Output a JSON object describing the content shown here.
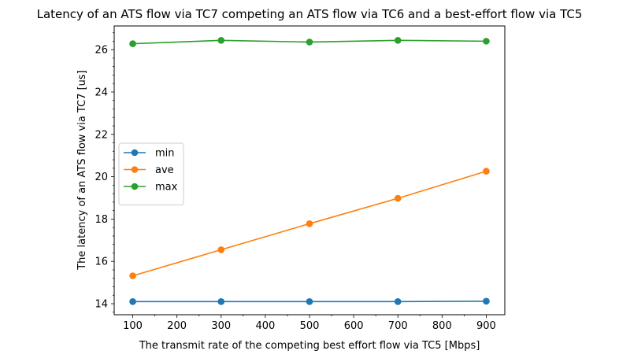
{
  "chart_data": {
    "type": "line",
    "title": "Latency of an ATS flow via TC7 competing an ATS flow via TC6 and a best-effort flow via TC5",
    "xlabel": "The transmit rate of the competing best effort flow via TC5 [Mbps]",
    "ylabel": "The latency of an ATS flow via TC7 [us]",
    "x": [
      100,
      300,
      500,
      700,
      900
    ],
    "xlim": [
      58,
      942
    ],
    "ylim": [
      13.48,
      27.12
    ],
    "xticks": [
      100,
      200,
      300,
      400,
      500,
      600,
      700,
      800,
      900
    ],
    "yticks": [
      14,
      16,
      18,
      20,
      22,
      24,
      26
    ],
    "xtick_labels": [
      "100",
      "200",
      "300",
      "400",
      "500",
      "600",
      "700",
      "800",
      "900"
    ],
    "ytick_labels": [
      "14",
      "16",
      "18",
      "20",
      "22",
      "24",
      "26"
    ],
    "x_minor_step": 50,
    "y_minor_step": 0.4,
    "grid": false,
    "legend_position": "center-left",
    "series": [
      {
        "name": "min",
        "color": "#1f77b4",
        "values": [
          14.1,
          14.1,
          14.1,
          14.1,
          14.12
        ]
      },
      {
        "name": "ave",
        "color": "#ff7f0e",
        "values": [
          15.32,
          16.55,
          17.78,
          18.98,
          20.26
        ]
      },
      {
        "name": "max",
        "color": "#2ca02c",
        "values": [
          26.28,
          26.44,
          26.36,
          26.44,
          26.4
        ]
      }
    ]
  }
}
